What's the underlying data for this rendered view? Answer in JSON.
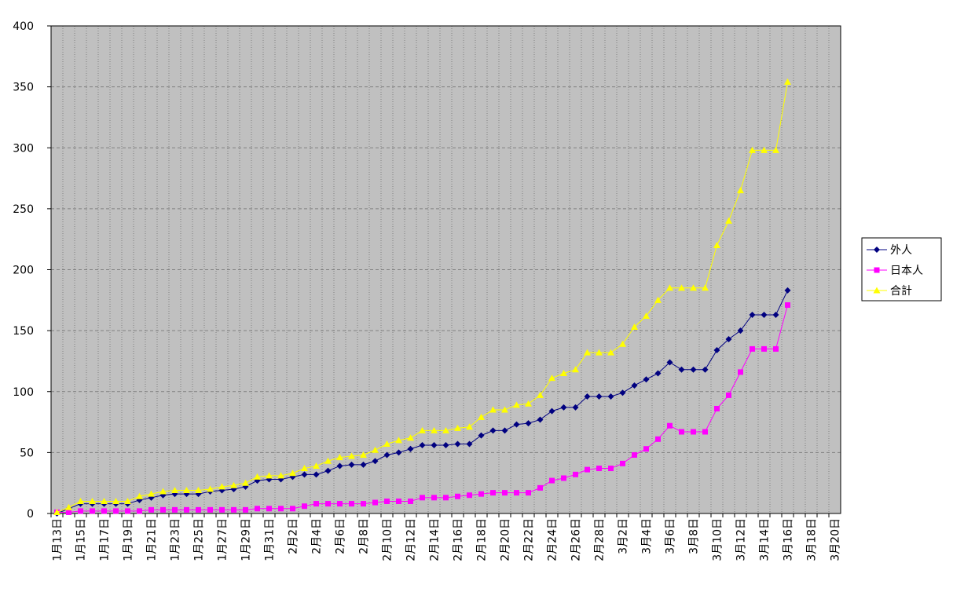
{
  "chart_data": {
    "type": "line",
    "categories": [
      "1月13日",
      null,
      "1月15日",
      null,
      "1月17日",
      null,
      "1月19日",
      null,
      "1月21日",
      null,
      "1月23日",
      null,
      "1月25日",
      null,
      "1月27日",
      null,
      "1月29日",
      null,
      "1月31日",
      null,
      "2月2日",
      null,
      "2月4日",
      null,
      "2月6日",
      null,
      "2月8日",
      null,
      "2月10日",
      null,
      "2月12日",
      null,
      "2月14日",
      null,
      "2月16日",
      null,
      "2月18日",
      null,
      "2月20日",
      null,
      "2月22日",
      null,
      "2月24日",
      null,
      "2月26日",
      null,
      "2月28日",
      null,
      "3月2日",
      null,
      "3月4日",
      null,
      "3月6日",
      null,
      "3月8日",
      null,
      "3月10日",
      null,
      "3月12日",
      null,
      "3月14日",
      null,
      "3月16日",
      null,
      "3月18日",
      null,
      "3月20日"
    ],
    "series": [
      {
        "name": "外人",
        "color": "#000080",
        "marker": "diamond",
        "values": [
          0,
          4,
          8,
          8,
          8,
          8,
          8,
          11,
          13,
          15,
          16,
          16,
          16,
          18,
          19,
          20,
          22,
          27,
          28,
          28,
          30,
          32,
          32,
          35,
          39,
          40,
          40,
          43,
          48,
          50,
          53,
          56,
          56,
          56,
          57,
          57,
          64,
          68,
          68,
          73,
          74,
          77,
          84,
          87,
          87,
          96,
          96,
          96,
          99,
          105,
          110,
          115,
          124,
          118,
          118,
          118,
          134,
          143,
          150,
          163,
          163,
          163,
          183,
          null,
          null,
          null,
          null
        ]
      },
      {
        "name": "日本人",
        "color": "#ff00ff",
        "marker": "square",
        "values": [
          1,
          1,
          2,
          2,
          2,
          2,
          2,
          2,
          3,
          3,
          3,
          3,
          3,
          3,
          3,
          3,
          3,
          4,
          4,
          4,
          4,
          6,
          8,
          8,
          8,
          8,
          8,
          9,
          10,
          10,
          10,
          13,
          13,
          13,
          14,
          15,
          16,
          17,
          17,
          17,
          17,
          21,
          27,
          29,
          32,
          36,
          37,
          37,
          41,
          48,
          53,
          61,
          72,
          67,
          67,
          67,
          86,
          97,
          116,
          135,
          135,
          135,
          171,
          null,
          null,
          null,
          null
        ]
      },
      {
        "name": "合計",
        "color": "#ffff00",
        "marker": "triangle",
        "values": [
          1,
          5,
          10,
          10,
          10,
          10,
          10,
          14,
          16,
          18,
          19,
          19,
          19,
          20,
          22,
          23,
          25,
          30,
          31,
          31,
          33,
          37,
          39,
          43,
          46,
          47,
          48,
          52,
          57,
          60,
          62,
          68,
          68,
          68,
          70,
          71,
          79,
          85,
          85,
          89,
          90,
          97,
          111,
          115,
          118,
          132,
          132,
          132,
          139,
          153,
          162,
          175,
          185,
          185,
          185,
          185,
          220,
          240,
          265,
          298,
          298,
          298,
          354,
          null,
          null,
          null,
          null
        ]
      }
    ],
    "ylim": [
      0,
      400
    ],
    "yticks": [
      0,
      50,
      100,
      150,
      200,
      250,
      300,
      350,
      400
    ],
    "grid": true,
    "legend": "right"
  }
}
